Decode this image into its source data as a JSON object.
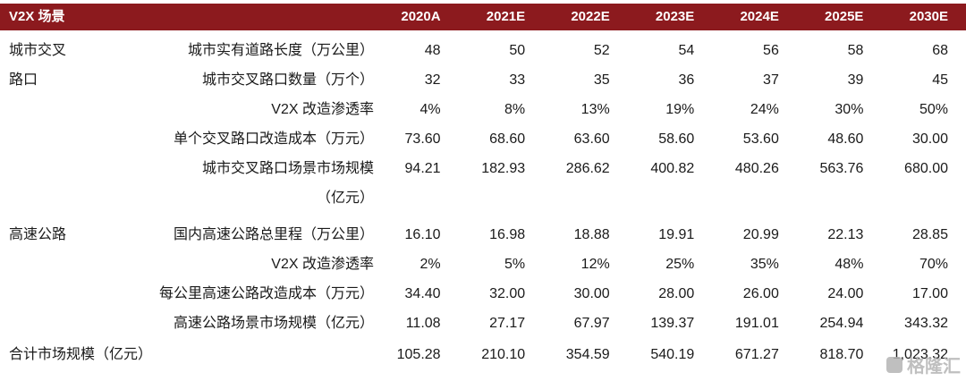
{
  "colors": {
    "header_bg": "#8c1a1e",
    "header_text": "#ffffff",
    "body_text": "#1a1a1a",
    "watermark": "#b5b5b5"
  },
  "header": {
    "title": "V2X 场景",
    "columns": [
      "2020A",
      "2021E",
      "2022E",
      "2023E",
      "2024E",
      "2025E",
      "2030E"
    ]
  },
  "rows": [
    {
      "group": "城市交叉路口",
      "label": "城市实有道路长度（万公里）",
      "values": [
        "48",
        "50",
        "52",
        "54",
        "56",
        "58",
        "68"
      ],
      "section_start": false
    },
    {
      "group": "",
      "label": "城市交叉路口数量（万个）",
      "values": [
        "32",
        "33",
        "35",
        "36",
        "37",
        "39",
        "45"
      ],
      "section_start": false
    },
    {
      "group": "",
      "label": "V2X 改造渗透率",
      "values": [
        "4%",
        "8%",
        "13%",
        "19%",
        "24%",
        "30%",
        "50%"
      ],
      "section_start": false
    },
    {
      "group": "",
      "label": "单个交叉路口改造成本（万元）",
      "values": [
        "73.60",
        "68.60",
        "63.60",
        "58.60",
        "53.60",
        "48.60",
        "30.00"
      ],
      "section_start": false
    },
    {
      "group": "",
      "label": "城市交叉路口场景市场规模\n（亿元）",
      "values": [
        "94.21",
        "182.93",
        "286.62",
        "400.82",
        "480.26",
        "563.76",
        "680.00"
      ],
      "section_start": false
    },
    {
      "group": "高速公路",
      "label": "国内高速公路总里程（万公里）",
      "values": [
        "16.10",
        "16.98",
        "18.88",
        "19.91",
        "20.99",
        "22.13",
        "28.85"
      ],
      "section_start": true
    },
    {
      "group": "",
      "label": "V2X 改造渗透率",
      "values": [
        "2%",
        "5%",
        "12%",
        "25%",
        "35%",
        "48%",
        "70%"
      ],
      "section_start": false
    },
    {
      "group": "",
      "label": "每公里高速公路改造成本（万元）",
      "values": [
        "34.40",
        "32.00",
        "30.00",
        "28.00",
        "26.00",
        "24.00",
        "17.00"
      ],
      "section_start": false
    },
    {
      "group": "",
      "label": "高速公路场景市场规模（亿元）",
      "values": [
        "11.08",
        "27.17",
        "67.97",
        "139.37",
        "191.01",
        "254.94",
        "343.32"
      ],
      "section_start": false
    }
  ],
  "total": {
    "label": "合计市场规模（亿元）",
    "values": [
      "105.28",
      "210.10",
      "354.59",
      "540.19",
      "671.27",
      "818.70",
      "1,023.32"
    ]
  },
  "watermark": {
    "text": "格隆汇"
  }
}
